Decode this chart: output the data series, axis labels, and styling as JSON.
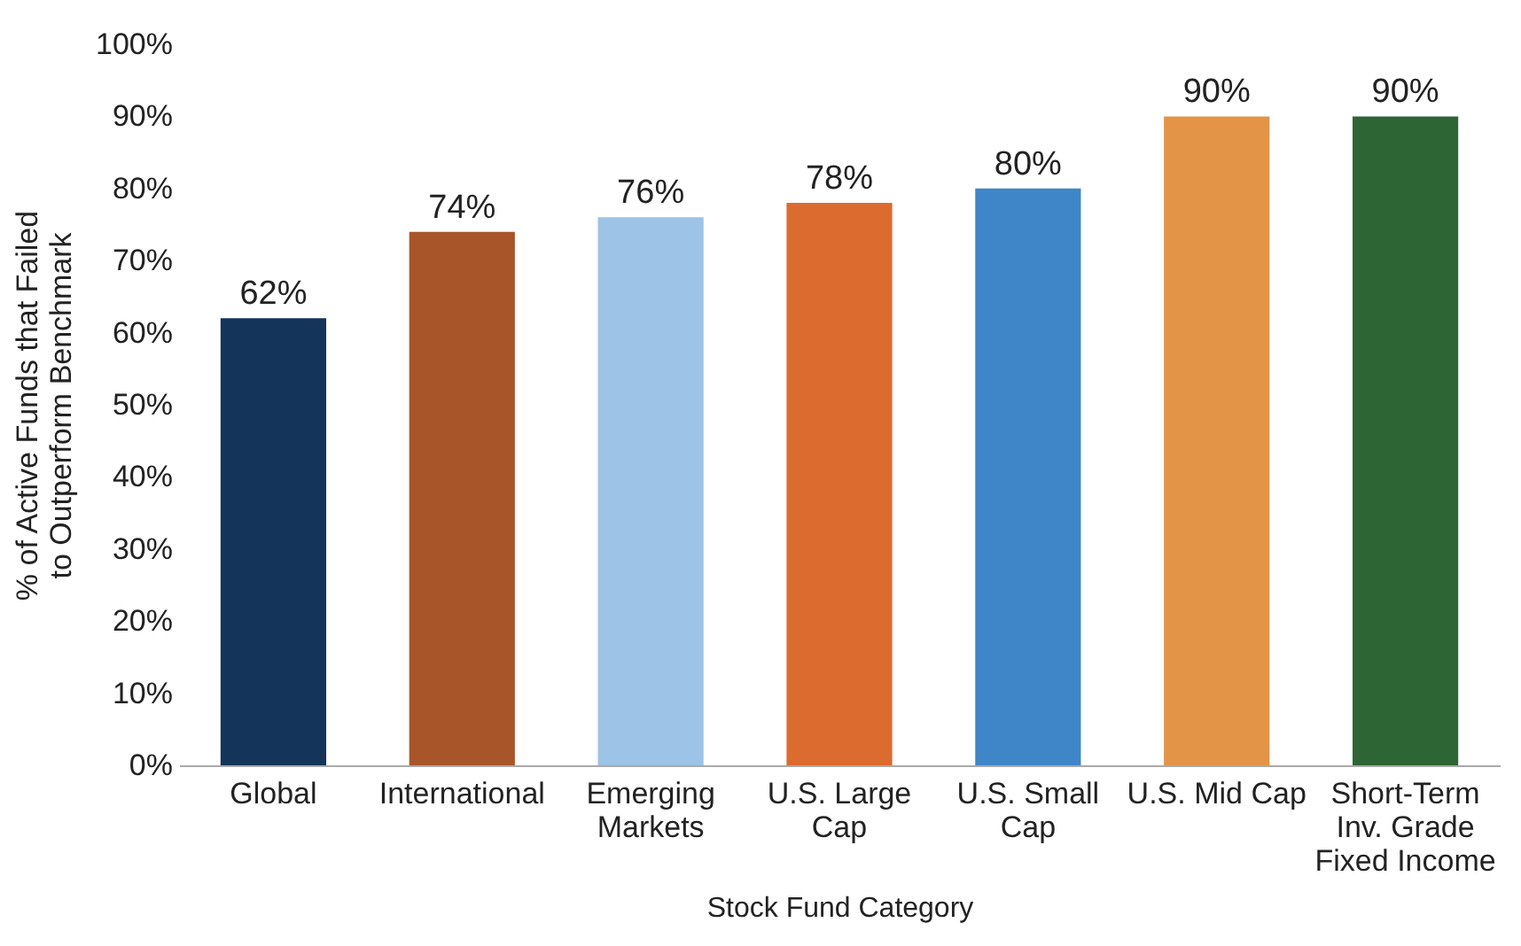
{
  "chart_data": {
    "type": "bar",
    "xlabel": "Stock Fund Category",
    "ylabel": "% of Active Funds that Failed to Outperform Benchmark",
    "categories": [
      "Global",
      "International",
      "Emerging Markets",
      "U.S. Large Cap",
      "U.S. Small Cap",
      "U.S. Mid Cap",
      "Short-Term Inv. Grade Fixed Income"
    ],
    "values": [
      62,
      74,
      76,
      78,
      80,
      90,
      90
    ],
    "value_labels": [
      "62%",
      "74%",
      "76%",
      "78%",
      "80%",
      "90%",
      "90%"
    ],
    "colors": [
      "#14345a",
      "#a8552a",
      "#9dc3e6",
      "#dc6b2f",
      "#3f86c8",
      "#e39447",
      "#2e6535"
    ],
    "ylim": [
      0,
      100
    ],
    "yticks": [
      {
        "value": 0,
        "label": "0%"
      },
      {
        "value": 10,
        "label": "10%"
      },
      {
        "value": 20,
        "label": "20%"
      },
      {
        "value": 30,
        "label": "30%"
      },
      {
        "value": 40,
        "label": "40%"
      },
      {
        "value": 50,
        "label": "50%"
      },
      {
        "value": 60,
        "label": "60%"
      },
      {
        "value": 70,
        "label": "70%"
      },
      {
        "value": 80,
        "label": "80%"
      },
      {
        "value": 90,
        "label": "90%"
      },
      {
        "value": 100,
        "label": "100%"
      }
    ],
    "grid": false,
    "legend": false
  }
}
